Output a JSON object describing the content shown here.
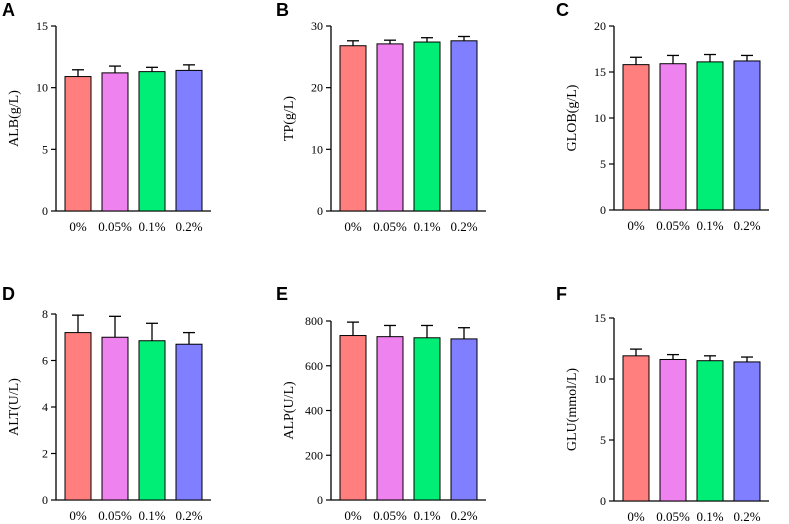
{
  "chart_data": [
    {
      "panel": "A",
      "type": "bar",
      "ylabel": "ALB(g/L)",
      "ylim": [
        0,
        15
      ],
      "yticks": [
        0,
        5,
        10,
        15
      ],
      "yticks_display": [
        "0",
        "5",
        "10",
        "15"
      ],
      "categories": [
        "0%",
        "0.05%",
        "0.1%",
        "0.2%"
      ],
      "values": [
        10.9,
        11.2,
        11.3,
        11.4
      ],
      "errors": [
        0.55,
        0.55,
        0.35,
        0.45
      ]
    },
    {
      "panel": "B",
      "type": "bar",
      "ylabel": "TP(g/L)",
      "ylim": [
        0,
        30
      ],
      "yticks": [
        0,
        10,
        20,
        30
      ],
      "yticks_display": [
        "0",
        "10",
        "20",
        "30"
      ],
      "categories": [
        "0%",
        "0.05%",
        "0.1%",
        "0.2%"
      ],
      "values": [
        26.8,
        27.1,
        27.4,
        27.6
      ],
      "errors": [
        0.8,
        0.6,
        0.7,
        0.7
      ]
    },
    {
      "panel": "C",
      "type": "bar",
      "ylabel": "GLOB(g/L)",
      "ylim": [
        0,
        20
      ],
      "yticks": [
        0,
        5,
        10,
        15,
        20
      ],
      "yticks_display": [
        "0",
        "5",
        "10",
        "15",
        "20"
      ],
      "categories": [
        "0%",
        "0.05%",
        "0.1%",
        "0.2%"
      ],
      "values": [
        15.8,
        15.9,
        16.1,
        16.2
      ],
      "errors": [
        0.8,
        0.9,
        0.8,
        0.6
      ]
    },
    {
      "panel": "D",
      "type": "bar",
      "ylabel": "ALT(U/L)",
      "ylim": [
        0,
        8
      ],
      "yticks": [
        0,
        2,
        4,
        6,
        8
      ],
      "yticks_display": [
        "0",
        "2",
        "4",
        "6",
        "8"
      ],
      "categories": [
        "0%",
        "0.05%",
        "0.1%",
        "0.2%"
      ],
      "values": [
        7.2,
        7.0,
        6.85,
        6.7
      ],
      "errors": [
        0.75,
        0.9,
        0.75,
        0.5
      ]
    },
    {
      "panel": "E",
      "type": "bar",
      "ylabel": "ALP(U/L)",
      "ylim": [
        0,
        800
      ],
      "yticks": [
        0,
        200,
        400,
        600,
        800
      ],
      "yticks_display": [
        "0",
        "200",
        "400",
        "600",
        "800"
      ],
      "categories": [
        "0%",
        "0.05%",
        "0.1%",
        "0.2%"
      ],
      "values": [
        735,
        730,
        725,
        720
      ],
      "errors": [
        60,
        50,
        55,
        50
      ]
    },
    {
      "panel": "F",
      "type": "bar",
      "ylabel": "GLU(mmol/L)",
      "ylim": [
        0,
        15
      ],
      "yticks": [
        0,
        5,
        10,
        15
      ],
      "yticks_display": [
        "0",
        "5",
        "10",
        "15"
      ],
      "categories": [
        "0%",
        "0.05%",
        "0.1%",
        "0.2%"
      ],
      "values": [
        11.9,
        11.6,
        11.5,
        11.4
      ],
      "errors": [
        0.55,
        0.4,
        0.4,
        0.4
      ]
    }
  ],
  "colors": [
    "#ff7f7f",
    "#ee82ee",
    "#00ee76",
    "#7f7fff"
  ]
}
